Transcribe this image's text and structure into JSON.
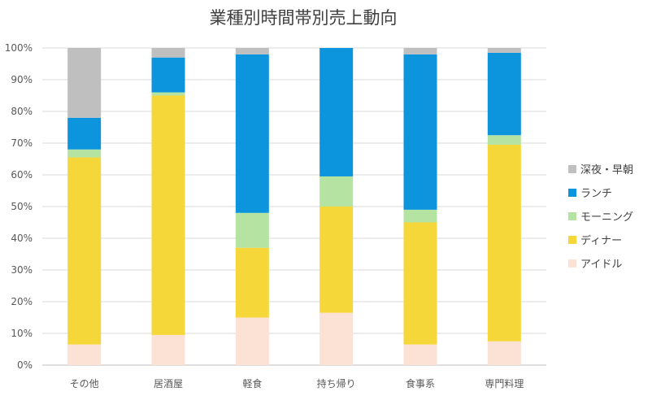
{
  "chart_data": {
    "type": "bar",
    "stacked": true,
    "title": "業種別時間帯別売上動向",
    "xlabel": "",
    "ylabel": "",
    "ylim": [
      0,
      100
    ],
    "yticks": [
      "0%",
      "10%",
      "20%",
      "30%",
      "40%",
      "50%",
      "60%",
      "70%",
      "80%",
      "90%",
      "100%"
    ],
    "categories": [
      "その他",
      "居酒屋",
      "軽食",
      "持ち帰り",
      "食事系",
      "専門料理"
    ],
    "series": [
      {
        "name": "アイドル",
        "color": "#fbe2d5",
        "values": [
          6.5,
          9.5,
          15,
          16.5,
          6.5,
          7.5
        ]
      },
      {
        "name": "ディナー",
        "color": "#f5d73a",
        "values": [
          59,
          75.5,
          22,
          33.5,
          38.5,
          62
        ]
      },
      {
        "name": "モーニング",
        "color": "#b5e4a2",
        "values": [
          2.5,
          1,
          11,
          9.5,
          4,
          3
        ]
      },
      {
        "name": "ランチ",
        "color": "#0c95dc",
        "values": [
          10,
          11,
          50,
          40.5,
          49,
          26
        ]
      },
      {
        "name": "深夜・早朝",
        "color": "#bfbfbf",
        "values": [
          22,
          3,
          2,
          0,
          2,
          1.5
        ]
      }
    ],
    "legend": {
      "position": "right",
      "order": [
        "深夜・早朝",
        "ランチ",
        "モーニング",
        "ディナー",
        "アイドル"
      ]
    },
    "grid": true
  }
}
